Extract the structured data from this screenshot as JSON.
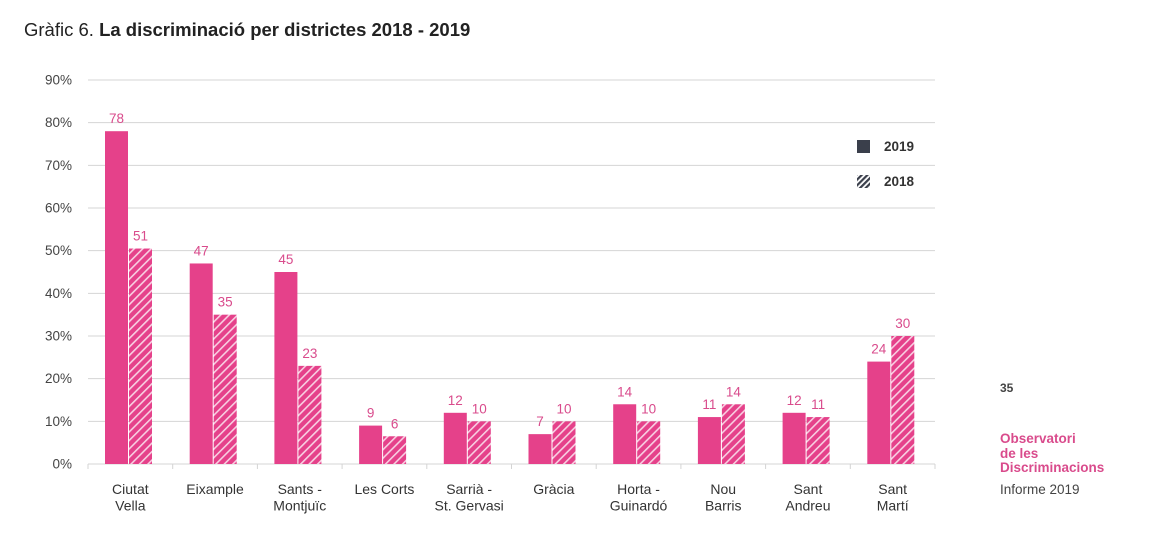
{
  "title": {
    "prefix": "Gràfic 6.",
    "main": "La discriminació per districtes 2018 - 2019"
  },
  "side": {
    "page_number": "35",
    "brand_lines": [
      "Observatori",
      "de les",
      "Discriminacions"
    ],
    "report": "Informe 2019"
  },
  "colors": {
    "bar": "#e5418a",
    "label": "#d94b8c",
    "grid": "#d4d4d4",
    "axis_text": "#444444",
    "legend_swatch": "#3a3f4b"
  },
  "chart_data": {
    "type": "bar",
    "categories": [
      [
        "Ciutat",
        "Vella"
      ],
      [
        "Eixample"
      ],
      [
        "Sants -",
        "Montjuïc"
      ],
      [
        "Les Corts"
      ],
      [
        "Sarrià -",
        "St. Gervasi"
      ],
      [
        "Gràcia"
      ],
      [
        "Horta -",
        "Guinardó"
      ],
      [
        "Nou",
        "Barris"
      ],
      [
        "Sant",
        "Andreu"
      ],
      [
        "Sant",
        "Martí"
      ]
    ],
    "series": [
      {
        "name": "2019",
        "pattern": "solid",
        "values": [
          78,
          47,
          45,
          9,
          12,
          7,
          14,
          11,
          12,
          24
        ]
      },
      {
        "name": "2018",
        "pattern": "hatched",
        "values": [
          51,
          35,
          23,
          6,
          10,
          10,
          10,
          14,
          11,
          30
        ]
      }
    ],
    "bar_heights_percent": {
      "2019": [
        78,
        47,
        45,
        9,
        12,
        7,
        14,
        11,
        12,
        24
      ],
      "2018": [
        50.5,
        35,
        23,
        6.5,
        10,
        10,
        10,
        14,
        11,
        30
      ]
    },
    "y_ticks": [
      "0%",
      "10%",
      "20%",
      "30%",
      "40%",
      "50%",
      "60%",
      "70%",
      "80%",
      "90%"
    ],
    "ylim": [
      0,
      90
    ],
    "grid": true,
    "legend_position": "top-right"
  }
}
